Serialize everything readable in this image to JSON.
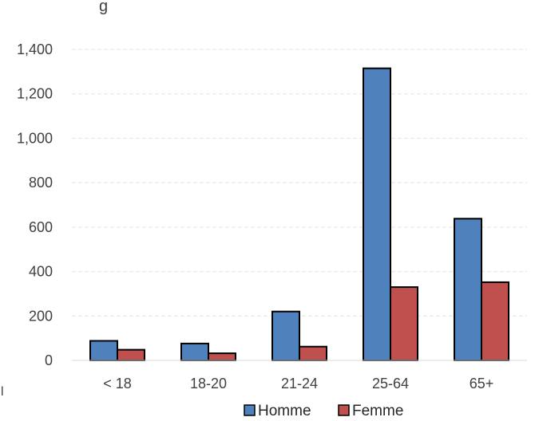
{
  "title_fragment": "g",
  "corner_mark": "l",
  "chart_data": {
    "type": "bar",
    "title": "",
    "xlabel": "",
    "ylabel": "",
    "categories": [
      "< 18",
      "18-20",
      "21-24",
      "25-64",
      "65+"
    ],
    "series": [
      {
        "name": "Homme",
        "color": "#4f81bd",
        "values": [
          88,
          76,
          220,
          1315,
          638
        ]
      },
      {
        "name": "Femme",
        "color": "#c0504d",
        "values": [
          48,
          32,
          62,
          330,
          352
        ]
      }
    ],
    "ylim": [
      0,
      1400
    ],
    "yticks": [
      0,
      200,
      400,
      600,
      800,
      1000,
      1200,
      1400
    ],
    "ytick_labels": [
      "0",
      "200",
      "400",
      "600",
      "800",
      "1,000",
      "1,200",
      "1,400"
    ],
    "grid": true,
    "legend_position": "bottom"
  }
}
